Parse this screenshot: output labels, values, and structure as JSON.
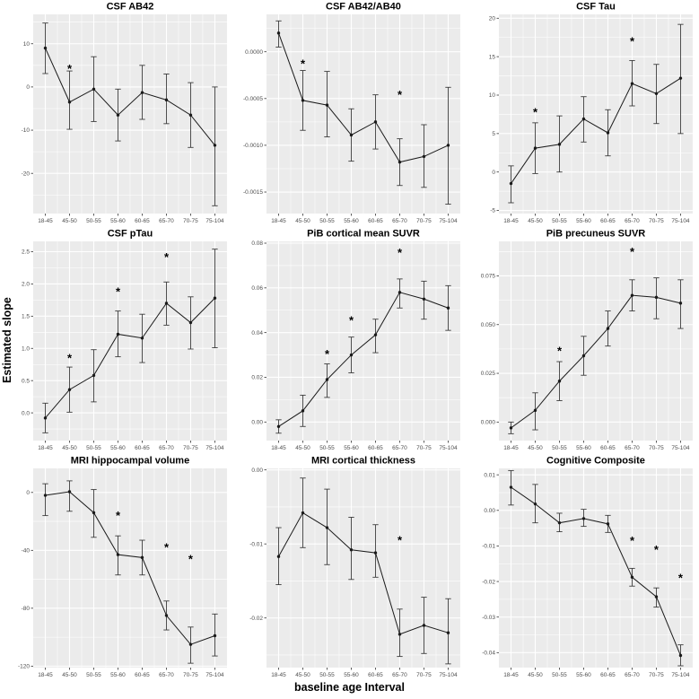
{
  "figure": {
    "ylabel": "Estimated slope",
    "xlabel": "baseline age Interval",
    "colors": {
      "panel_bg": "#EBEBEB",
      "grid": "#FFFFFF",
      "line": "#1A1A1A",
      "errorbar": "#3C3C3C",
      "tick": "#333333",
      "tick_label": "#4D4D4D",
      "title": "#000000"
    }
  },
  "chart_data": [
    {
      "type": "line",
      "title": "CSF AB42",
      "categories": [
        "18-45",
        "45-50",
        "50-55",
        "55-60",
        "60-65",
        "65-70",
        "70-75",
        "75-104"
      ],
      "values": [
        9.0,
        -3.5,
        -0.5,
        -6.5,
        -1.3,
        -3.0,
        -6.5,
        -13.5
      ],
      "err_low": [
        3.1,
        -9.8,
        -8.0,
        -12.5,
        -7.5,
        -8.5,
        -14.0,
        -27.5
      ],
      "err_high": [
        14.8,
        3.7,
        7.0,
        -0.5,
        5.0,
        3.0,
        1.0,
        0.0
      ],
      "yticks": [
        10,
        0,
        -10,
        -20
      ],
      "ytick_labels": [
        "10",
        "0",
        "-10",
        "-20"
      ],
      "ylim": [
        -29.3,
        16.8
      ],
      "stars": [
        {
          "x": "45-50",
          "y": 4.2
        }
      ]
    },
    {
      "type": "line",
      "title": "CSF AB42/AB40",
      "categories": [
        "18-45",
        "45-50",
        "50-55",
        "55-60",
        "60-65",
        "65-70",
        "70-75",
        "75-104"
      ],
      "values": [
        0.0002,
        -0.00052,
        -0.00057,
        -0.00089,
        -0.00075,
        -0.00118,
        -0.00112,
        -0.001
      ],
      "err_low": [
        5e-05,
        -0.00084,
        -0.00091,
        -0.00117,
        -0.00104,
        -0.00143,
        -0.00145,
        -0.00163
      ],
      "err_high": [
        0.00033,
        -0.0002,
        -0.00021,
        -0.00061,
        -0.00046,
        -0.00093,
        -0.00078,
        -0.00038
      ],
      "yticks": [
        0,
        -0.0005,
        -0.001,
        -0.0015
      ],
      "ytick_labels": [
        "0.0000",
        "-0.0005",
        "-0.0010",
        "-0.0015"
      ],
      "ylim": [
        -0.00173,
        0.0004
      ],
      "stars": [
        {
          "x": "45-50",
          "y": -0.00013
        },
        {
          "x": "65-70",
          "y": -0.00046
        }
      ]
    },
    {
      "type": "line",
      "title": "CSF Tau",
      "categories": [
        "18-45",
        "45-50",
        "50-55",
        "55-60",
        "60-65",
        "65-70",
        "70-75",
        "75-104"
      ],
      "values": [
        -1.5,
        3.1,
        3.6,
        6.9,
        5.1,
        11.5,
        10.2,
        12.2
      ],
      "err_low": [
        -4.0,
        -0.2,
        0.0,
        3.9,
        2.1,
        8.6,
        6.3,
        5.0
      ],
      "err_high": [
        0.8,
        6.4,
        7.3,
        9.8,
        8.1,
        14.5,
        14.0,
        19.2
      ],
      "yticks": [
        20,
        15,
        10,
        5,
        0,
        -5
      ],
      "ytick_labels": [
        "20",
        "15",
        "10",
        "5",
        "0",
        "-5"
      ],
      "ylim": [
        -5.4,
        20.5
      ],
      "stars": [
        {
          "x": "45-50",
          "y": 7.8
        },
        {
          "x": "65-70",
          "y": 17.0
        }
      ]
    },
    {
      "type": "line",
      "title": "CSF pTau",
      "categories": [
        "18-45",
        "45-50",
        "50-55",
        "55-60",
        "60-65",
        "65-70",
        "70-75",
        "75-104"
      ],
      "values": [
        -0.08,
        0.36,
        0.58,
        1.22,
        1.16,
        1.7,
        1.4,
        1.78
      ],
      "err_low": [
        -0.31,
        0.01,
        0.17,
        0.87,
        0.78,
        1.36,
        0.99,
        1.01
      ],
      "err_high": [
        0.15,
        0.71,
        0.98,
        1.58,
        1.53,
        2.03,
        1.8,
        2.54
      ],
      "yticks": [
        2.5,
        2.0,
        1.5,
        1.0,
        0.5,
        0.0
      ],
      "ytick_labels": [
        "2.5",
        "2.0",
        "1.5",
        "1.0",
        "0.5",
        "0.0"
      ],
      "ylim": [
        -0.43,
        2.66
      ],
      "stars": [
        {
          "x": "45-50",
          "y": 0.85
        },
        {
          "x": "55-60",
          "y": 1.88
        },
        {
          "x": "65-70",
          "y": 2.42
        }
      ]
    },
    {
      "type": "line",
      "title": "PiB cortical mean SUVR",
      "categories": [
        "18-45",
        "45-50",
        "50-55",
        "55-60",
        "60-65",
        "65-70",
        "70-75",
        "75-104"
      ],
      "values": [
        -0.002,
        0.005,
        0.019,
        0.03,
        0.039,
        0.058,
        0.055,
        0.051
      ],
      "err_low": [
        -0.005,
        -0.002,
        0.011,
        0.022,
        0.031,
        0.051,
        0.046,
        0.041
      ],
      "err_high": [
        0.001,
        0.012,
        0.026,
        0.038,
        0.046,
        0.064,
        0.063,
        0.061
      ],
      "yticks": [
        0.08,
        0.06,
        0.04,
        0.02,
        0.0
      ],
      "ytick_labels": [
        "0.08",
        "0.06",
        "0.04",
        "0.02",
        "0.00"
      ],
      "ylim": [
        -0.0083,
        0.0808
      ],
      "stars": [
        {
          "x": "50-55",
          "y": 0.0305
        },
        {
          "x": "55-60",
          "y": 0.0455
        },
        {
          "x": "65-70",
          "y": 0.0758
        }
      ]
    },
    {
      "type": "line",
      "title": "PiB precuneus SUVR",
      "categories": [
        "18-45",
        "45-50",
        "50-55",
        "55-60",
        "60-65",
        "65-70",
        "70-75",
        "75-104"
      ],
      "values": [
        -0.003,
        0.006,
        0.021,
        0.034,
        0.048,
        0.065,
        0.064,
        0.061
      ],
      "err_low": [
        -0.006,
        -0.004,
        0.011,
        0.024,
        0.039,
        0.057,
        0.053,
        0.048
      ],
      "err_high": [
        0.0,
        0.015,
        0.031,
        0.044,
        0.057,
        0.073,
        0.074,
        0.073
      ],
      "yticks": [
        0.075,
        0.05,
        0.025,
        0.0
      ],
      "ytick_labels": [
        "0.075",
        "0.050",
        "0.025",
        "0.000"
      ],
      "ylim": [
        -0.0095,
        0.0927
      ],
      "stars": [
        {
          "x": "50-55",
          "y": 0.0365
        },
        {
          "x": "65-70",
          "y": 0.0875
        }
      ]
    },
    {
      "type": "line",
      "title": "MRI hippocampal volume",
      "categories": [
        "18-45",
        "45-50",
        "50-55",
        "55-60",
        "60-65",
        "65-70",
        "70-75",
        "75-104"
      ],
      "values": [
        -2,
        0.5,
        -14,
        -43,
        -45,
        -85,
        -105,
        -99
      ],
      "err_low": [
        -16,
        -13,
        -31,
        -57,
        -57,
        -95,
        -118,
        -113
      ],
      "err_high": [
        6,
        8,
        2,
        -30,
        -33,
        -75,
        -93,
        -84
      ],
      "yticks": [
        0,
        -40,
        -80,
        -120
      ],
      "ytick_labels": [
        "0",
        "-40",
        "-80",
        "-120"
      ],
      "ylim": [
        -121,
        16.6
      ],
      "stars": [
        {
          "x": "55-60",
          "y": -16
        },
        {
          "x": "65-70",
          "y": -38
        },
        {
          "x": "70-75",
          "y": -46
        }
      ]
    },
    {
      "type": "line",
      "title": "MRI cortical thickness",
      "categories": [
        "18-45",
        "45-50",
        "50-55",
        "55-60",
        "60-65",
        "65-70",
        "70-75",
        "75-104"
      ],
      "values": [
        -0.0117,
        -0.0058,
        -0.0078,
        -0.0108,
        -0.0112,
        -0.0222,
        -0.021,
        -0.022
      ],
      "err_low": [
        -0.0155,
        -0.0105,
        -0.0128,
        -0.0148,
        -0.0145,
        -0.0252,
        -0.0248,
        -0.0262
      ],
      "err_high": [
        -0.0078,
        -0.0011,
        -0.0026,
        -0.0064,
        -0.0074,
        -0.0188,
        -0.0172,
        -0.0174
      ],
      "yticks": [
        0.0,
        -0.01,
        -0.02
      ],
      "ytick_labels": [
        "0.00",
        "-0.01",
        "-0.02"
      ],
      "ylim": [
        -0.0267,
        0.0002
      ],
      "stars": [
        {
          "x": "65-70",
          "y": -0.0095
        }
      ]
    },
    {
      "type": "line",
      "title": "Cognitive Composite",
      "categories": [
        "18-45",
        "45-50",
        "50-55",
        "55-60",
        "60-65",
        "65-70",
        "70-75",
        "75-104"
      ],
      "values": [
        0.0065,
        0.0018,
        -0.0035,
        -0.0023,
        -0.0038,
        -0.0188,
        -0.0243,
        -0.0408
      ],
      "err_low": [
        0.0015,
        -0.0035,
        -0.006,
        -0.0045,
        -0.0062,
        -0.0213,
        -0.0272,
        -0.0437
      ],
      "err_high": [
        0.0112,
        0.0073,
        -0.0008,
        0.0003,
        -0.0014,
        -0.0163,
        -0.0218,
        -0.0378
      ],
      "yticks": [
        0.01,
        0.0,
        -0.01,
        -0.02,
        -0.03,
        -0.04
      ],
      "ytick_labels": [
        "0.01",
        "0.00",
        "-0.01",
        "-0.02",
        "-0.03",
        "-0.04"
      ],
      "ylim": [
        -0.0442,
        0.0118
      ],
      "stars": [
        {
          "x": "65-70",
          "y": -0.0085
        },
        {
          "x": "70-75",
          "y": -0.011
        },
        {
          "x": "75-104",
          "y": -0.019
        }
      ]
    }
  ]
}
